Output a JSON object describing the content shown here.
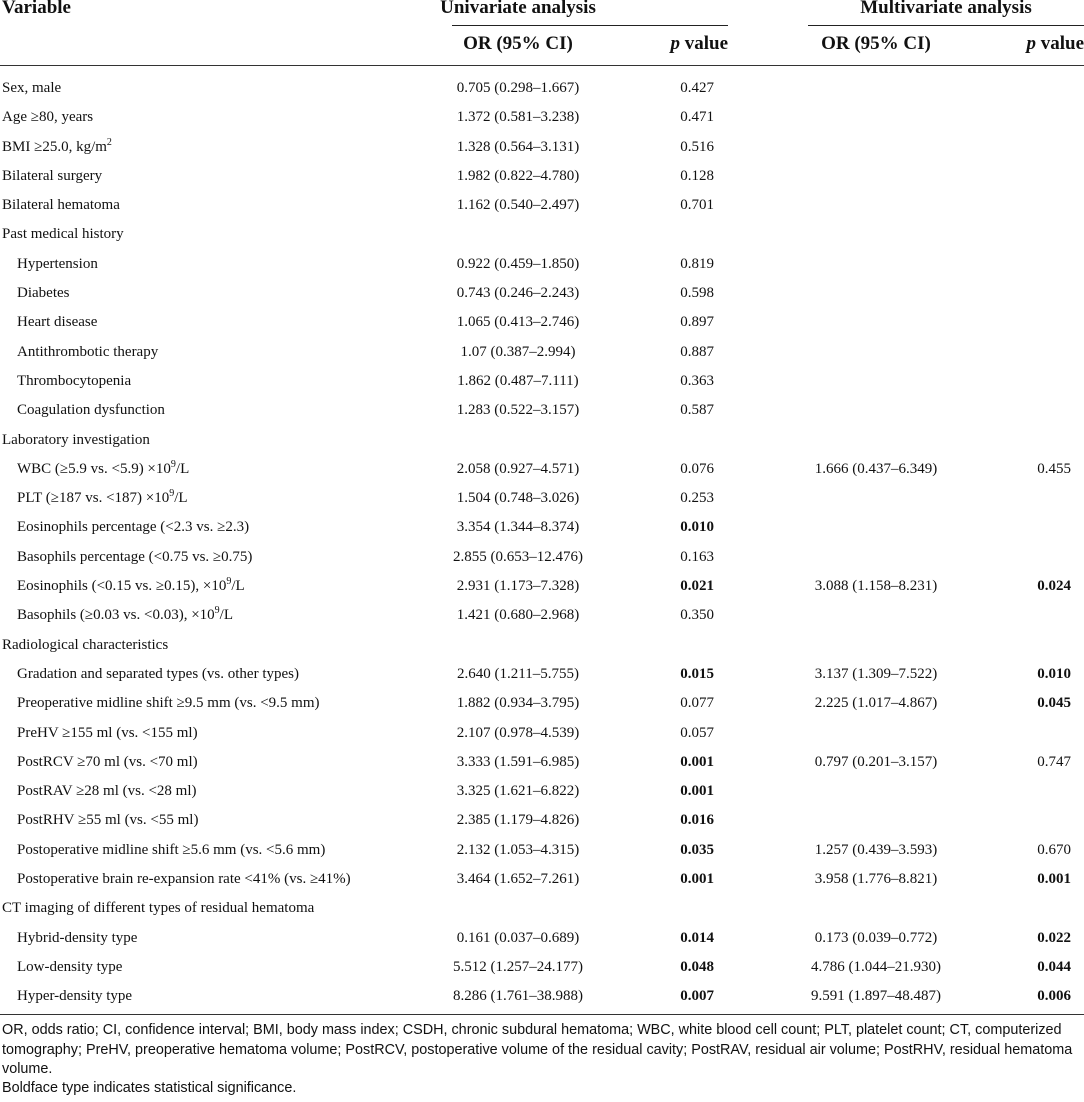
{
  "header": {
    "variable": "Variable",
    "univariate": "Univariate analysis",
    "multivariate": "Multivariate analysis",
    "or_ci": "OR (95% CI)",
    "p_value_italic": "p",
    "p_value_rest": " value"
  },
  "rows": [
    {
      "label": "Sex, male",
      "sub": false,
      "u_or": "0.705 (0.298–1.667)",
      "u_p": "0.427",
      "u_sig": false,
      "m_or": "",
      "m_p": "",
      "m_sig": false
    },
    {
      "label": "Age ≥80, years",
      "sub": false,
      "u_or": "1.372 (0.581–3.238)",
      "u_p": "0.471",
      "u_sig": false,
      "m_or": "",
      "m_p": "",
      "m_sig": false
    },
    {
      "label": "BMI ≥25.0, kg/m",
      "sup": "2",
      "sub": false,
      "u_or": "1.328 (0.564–3.131)",
      "u_p": "0.516",
      "u_sig": false,
      "m_or": "",
      "m_p": "",
      "m_sig": false
    },
    {
      "label": "Bilateral surgery",
      "sub": false,
      "u_or": "1.982 (0.822–4.780)",
      "u_p": "0.128",
      "u_sig": false,
      "m_or": "",
      "m_p": "",
      "m_sig": false
    },
    {
      "label": "Bilateral hematoma",
      "sub": false,
      "u_or": "1.162 (0.540–2.497)",
      "u_p": "0.701",
      "u_sig": false,
      "m_or": "",
      "m_p": "",
      "m_sig": false
    },
    {
      "label": "Past medical history",
      "sub": false,
      "u_or": "",
      "u_p": "",
      "u_sig": false,
      "m_or": "",
      "m_p": "",
      "m_sig": false
    },
    {
      "label": "Hypertension",
      "sub": true,
      "u_or": "0.922 (0.459–1.850)",
      "u_p": "0.819",
      "u_sig": false,
      "m_or": "",
      "m_p": "",
      "m_sig": false
    },
    {
      "label": "Diabetes",
      "sub": true,
      "u_or": "0.743 (0.246–2.243)",
      "u_p": "0.598",
      "u_sig": false,
      "m_or": "",
      "m_p": "",
      "m_sig": false
    },
    {
      "label": "Heart disease",
      "sub": true,
      "u_or": "1.065 (0.413–2.746)",
      "u_p": "0.897",
      "u_sig": false,
      "m_or": "",
      "m_p": "",
      "m_sig": false
    },
    {
      "label": "Antithrombotic therapy",
      "sub": true,
      "u_or": "1.07 (0.387–2.994)",
      "u_p": "0.887",
      "u_sig": false,
      "m_or": "",
      "m_p": "",
      "m_sig": false
    },
    {
      "label": "Thrombocytopenia",
      "sub": true,
      "u_or": "1.862 (0.487–7.111)",
      "u_p": "0.363",
      "u_sig": false,
      "m_or": "",
      "m_p": "",
      "m_sig": false
    },
    {
      "label": "Coagulation dysfunction",
      "sub": true,
      "u_or": "1.283 (0.522–3.157)",
      "u_p": "0.587",
      "u_sig": false,
      "m_or": "",
      "m_p": "",
      "m_sig": false
    },
    {
      "label": "Laboratory investigation",
      "sub": false,
      "u_or": "",
      "u_p": "",
      "u_sig": false,
      "m_or": "",
      "m_p": "",
      "m_sig": false
    },
    {
      "label": "WBC (≥5.9 vs. <5.9) ×10",
      "sup": "9",
      "tail": "/L",
      "sub": true,
      "u_or": "2.058 (0.927–4.571)",
      "u_p": "0.076",
      "u_sig": false,
      "m_or": "1.666 (0.437–6.349)",
      "m_p": "0.455",
      "m_sig": false
    },
    {
      "label": "PLT (≥187 vs. <187) ×10",
      "sup": "9",
      "tail": "/L",
      "sub": true,
      "u_or": "1.504 (0.748–3.026)",
      "u_p": "0.253",
      "u_sig": false,
      "m_or": "",
      "m_p": "",
      "m_sig": false
    },
    {
      "label": "Eosinophils percentage (<2.3 vs. ≥2.3)",
      "sub": true,
      "u_or": "3.354 (1.344–8.374)",
      "u_p": "0.010",
      "u_sig": true,
      "m_or": "",
      "m_p": "",
      "m_sig": false
    },
    {
      "label": "Basophils percentage (<0.75 vs. ≥0.75)",
      "sub": true,
      "u_or": "2.855 (0.653–12.476)",
      "u_p": "0.163",
      "u_sig": false,
      "m_or": "",
      "m_p": "",
      "m_sig": false
    },
    {
      "label": "Eosinophils (<0.15 vs. ≥0.15), ×10",
      "sup": "9",
      "tail": "/L",
      "sub": true,
      "u_or": "2.931 (1.173–7.328)",
      "u_p": "0.021",
      "u_sig": true,
      "m_or": "3.088 (1.158–8.231)",
      "m_p": "0.024",
      "m_sig": true
    },
    {
      "label": "Basophils (≥0.03 vs. <0.03), ×10",
      "sup": "9",
      "tail": "/L",
      "sub": true,
      "u_or": "1.421 (0.680–2.968)",
      "u_p": "0.350",
      "u_sig": false,
      "m_or": "",
      "m_p": "",
      "m_sig": false
    },
    {
      "label": "Radiological characteristics",
      "sub": false,
      "u_or": "",
      "u_p": "",
      "u_sig": false,
      "m_or": "",
      "m_p": "",
      "m_sig": false
    },
    {
      "label": "Gradation and separated types (vs. other types)",
      "sub": true,
      "u_or": "2.640 (1.211–5.755)",
      "u_p": "0.015",
      "u_sig": true,
      "m_or": "3.137 (1.309–7.522)",
      "m_p": "0.010",
      "m_sig": true
    },
    {
      "label": "Preoperative midline shift ≥9.5 mm (vs. <9.5 mm)",
      "sub": true,
      "u_or": "1.882 (0.934–3.795)",
      "u_p": "0.077",
      "u_sig": false,
      "m_or": "2.225 (1.017–4.867)",
      "m_p": "0.045",
      "m_sig": true
    },
    {
      "label": "PreHV ≥155 ml (vs. <155 ml)",
      "sub": true,
      "u_or": "2.107 (0.978–4.539)",
      "u_p": "0.057",
      "u_sig": false,
      "m_or": "",
      "m_p": "",
      "m_sig": false
    },
    {
      "label": "PostRCV ≥70 ml (vs. <70 ml)",
      "sub": true,
      "u_or": "3.333 (1.591–6.985)",
      "u_p": "0.001",
      "u_sig": true,
      "m_or": "0.797 (0.201–3.157)",
      "m_p": "0.747",
      "m_sig": false
    },
    {
      "label": "PostRAV ≥28 ml (vs. <28 ml)",
      "sub": true,
      "u_or": "3.325 (1.621–6.822)",
      "u_p": "0.001",
      "u_sig": true,
      "m_or": "",
      "m_p": "",
      "m_sig": false
    },
    {
      "label": "PostRHV ≥55 ml (vs. <55 ml)",
      "sub": true,
      "u_or": "2.385 (1.179–4.826)",
      "u_p": "0.016",
      "u_sig": true,
      "m_or": "",
      "m_p": "",
      "m_sig": false
    },
    {
      "label": "Postoperative midline shift ≥5.6 mm (vs. <5.6 mm)",
      "sub": true,
      "u_or": "2.132 (1.053–4.315)",
      "u_p": "0.035",
      "u_sig": true,
      "m_or": "1.257 (0.439–3.593)",
      "m_p": "0.670",
      "m_sig": false
    },
    {
      "label": "Postoperative brain re-expansion rate <41% (vs. ≥41%)",
      "sub": true,
      "u_or": "3.464 (1.652–7.261)",
      "u_p": "0.001",
      "u_sig": true,
      "m_or": "3.958 (1.776–8.821)",
      "m_p": "0.001",
      "m_sig": true
    },
    {
      "label": "CT imaging of different types of residual hematoma",
      "sub": false,
      "u_or": "",
      "u_p": "",
      "u_sig": false,
      "m_or": "",
      "m_p": "",
      "m_sig": false
    },
    {
      "label": "Hybrid-density type",
      "sub": true,
      "u_or": "0.161 (0.037–0.689)",
      "u_p": "0.014",
      "u_sig": true,
      "m_or": "0.173 (0.039–0.772)",
      "m_p": "0.022",
      "m_sig": true
    },
    {
      "label": "Low-density type",
      "sub": true,
      "u_or": "5.512 (1.257–24.177)",
      "u_p": "0.048",
      "u_sig": true,
      "m_or": "4.786 (1.044–21.930)",
      "m_p": "0.044",
      "m_sig": true
    },
    {
      "label": "Hyper-density type",
      "sub": true,
      "u_or": "8.286 (1.761–38.988)",
      "u_p": "0.007",
      "u_sig": true,
      "m_or": "9.591 (1.897–48.487)",
      "m_p": "0.006",
      "m_sig": true
    }
  ],
  "footnote": {
    "abbreviations": "OR, odds ratio; CI, confidence interval; BMI, body mass index; CSDH, chronic subdural hematoma; WBC, white blood cell count; PLT, platelet count; CT, computerized tomography; PreHV, preoperative hematoma volume; PostRCV, postoperative volume of the residual cavity; PostRAV, residual air volume; PostRHV, residual hematoma volume.",
    "significance": "Boldface type indicates statistical significance."
  }
}
